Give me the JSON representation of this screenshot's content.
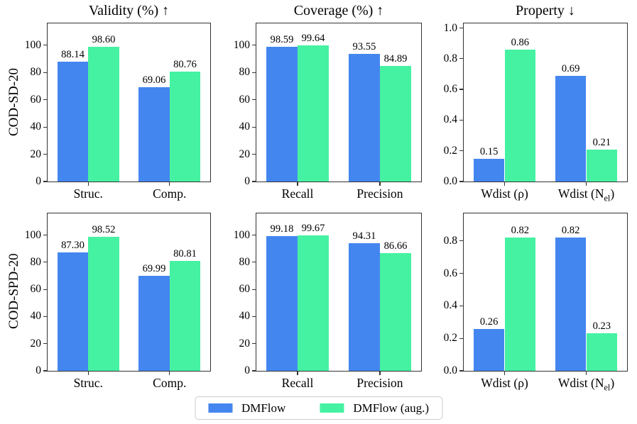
{
  "figure": {
    "column_titles": [
      "Validity (%) ↑",
      "Coverage (%) ↑",
      "Property ↓"
    ],
    "row_labels": [
      "COD-SD-20",
      "COD-SPD-20"
    ],
    "background": "#ffffff",
    "spine_color": "#333333"
  },
  "legend": {
    "items": [
      {
        "label": "DMFlow",
        "color": "#4486F0"
      },
      {
        "label": "DMFlow (aug.)",
        "color": "#45F2A2"
      }
    ]
  },
  "chart_data": [
    {
      "type": "bar",
      "row": "COD-SD-20",
      "title": "Validity (%) ↑",
      "categories": [
        "Struc.",
        "Comp."
      ],
      "series": [
        {
          "name": "DMFlow",
          "color": "#4486F0",
          "values": [
            88.14,
            69.06
          ]
        },
        {
          "name": "DMFlow (aug.)",
          "color": "#45F2A2",
          "values": [
            98.6,
            80.76
          ]
        }
      ],
      "ylim": [
        0,
        116
      ],
      "yticks": [
        "0",
        "20",
        "40",
        "60",
        "80",
        "100"
      ],
      "grid": false,
      "legend_position": "figure-bottom"
    },
    {
      "type": "bar",
      "row": "COD-SD-20",
      "title": "Coverage (%) ↑",
      "categories": [
        "Recall",
        "Precision"
      ],
      "series": [
        {
          "name": "DMFlow",
          "color": "#4486F0",
          "values": [
            98.59,
            93.55
          ]
        },
        {
          "name": "DMFlow (aug.)",
          "color": "#45F2A2",
          "values": [
            99.64,
            84.89
          ]
        }
      ],
      "ylim": [
        0,
        116
      ],
      "yticks": [
        "0",
        "20",
        "40",
        "60",
        "80",
        "100"
      ],
      "grid": false,
      "legend_position": "figure-bottom"
    },
    {
      "type": "bar",
      "row": "COD-SD-20",
      "title": "Property ↓",
      "categories": [
        "Wdist (ρ)",
        "Wdist (N_{el})"
      ],
      "series": [
        {
          "name": "DMFlow",
          "color": "#4486F0",
          "values": [
            0.15,
            0.69
          ]
        },
        {
          "name": "DMFlow (aug.)",
          "color": "#45F2A2",
          "values": [
            0.86,
            0.21
          ]
        }
      ],
      "ylim": [
        0,
        1.03
      ],
      "yticks": [
        "0.0",
        "0.2",
        "0.4",
        "0.6",
        "0.8",
        "1.0"
      ],
      "grid": false,
      "legend_position": "figure-bottom"
    },
    {
      "type": "bar",
      "row": "COD-SPD-20",
      "title": "Validity (%) ↑",
      "categories": [
        "Struc.",
        "Comp."
      ],
      "series": [
        {
          "name": "DMFlow",
          "color": "#4486F0",
          "values": [
            87.3,
            69.99
          ]
        },
        {
          "name": "DMFlow (aug.)",
          "color": "#45F2A2",
          "values": [
            98.52,
            80.81
          ]
        }
      ],
      "ylim": [
        0,
        116
      ],
      "yticks": [
        "0",
        "20",
        "40",
        "60",
        "80",
        "100"
      ],
      "grid": false,
      "legend_position": "figure-bottom"
    },
    {
      "type": "bar",
      "row": "COD-SPD-20",
      "title": "Coverage (%) ↑",
      "categories": [
        "Recall",
        "Precision"
      ],
      "series": [
        {
          "name": "DMFlow",
          "color": "#4486F0",
          "values": [
            99.18,
            94.31
          ]
        },
        {
          "name": "DMFlow (aug.)",
          "color": "#45F2A2",
          "values": [
            99.67,
            86.66
          ]
        }
      ],
      "ylim": [
        0,
        116
      ],
      "yticks": [
        "0",
        "20",
        "40",
        "60",
        "80",
        "100"
      ],
      "grid": false,
      "legend_position": "figure-bottom"
    },
    {
      "type": "bar",
      "row": "COD-SPD-20",
      "title": "Property ↓",
      "categories": [
        "Wdist (ρ)",
        "Wdist (N_{el})"
      ],
      "series": [
        {
          "name": "DMFlow",
          "color": "#4486F0",
          "values": [
            0.26,
            0.82
          ]
        },
        {
          "name": "DMFlow (aug.)",
          "color": "#45F2A2",
          "values": [
            0.82,
            0.23
          ]
        }
      ],
      "ylim": [
        0,
        0.97
      ],
      "yticks": [
        "0.0",
        "0.2",
        "0.4",
        "0.6",
        "0.8"
      ],
      "grid": false,
      "legend_position": "figure-bottom"
    }
  ]
}
